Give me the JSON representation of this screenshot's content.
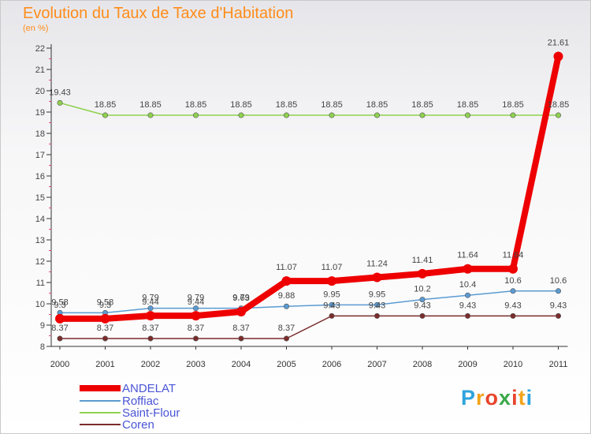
{
  "colors": {
    "title": "#ff8c1a",
    "axis": "#333333",
    "grid_dots": "#e0457b",
    "label": "#444444",
    "legend_text": "#4a55d6"
  },
  "logo": {
    "text": "Proxiti",
    "letters": [
      "P",
      "r",
      "o",
      "x",
      "i",
      "t",
      "i"
    ],
    "colors": [
      "#2fa3de",
      "#f2a31a",
      "#e8452c",
      "#3aa84a",
      "#e8452c",
      "#f2a31a",
      "#2fa3de"
    ]
  },
  "chart_data": {
    "type": "line",
    "title": "Evolution du Taux de Taxe d'Habitation",
    "subtitle": "(en %)",
    "xlabel": "",
    "ylabel": "(en %)",
    "ylim": [
      8,
      22
    ],
    "yticks": [
      "8",
      "9",
      "10",
      "11",
      "12",
      "13",
      "14",
      "15",
      "16",
      "17",
      "18",
      "19",
      "20",
      "21",
      "22"
    ],
    "x": [
      "2000",
      "2001",
      "2002",
      "2003",
      "2004",
      "2005",
      "2006",
      "2007",
      "2008",
      "2009",
      "2010",
      "2011"
    ],
    "legend_position": "bottom-left",
    "series": [
      {
        "name": "ANDELAT",
        "color": "#ee0000",
        "values": [
          9.3,
          9.3,
          9.44,
          9.44,
          9.63,
          11.07,
          11.07,
          11.24,
          11.41,
          11.64,
          11.64,
          21.61
        ],
        "labels": [
          "9.3",
          "9.3",
          "9.44",
          "9.44",
          "9.63",
          "11.07",
          "11.07",
          "11.24",
          "11.41",
          "11.64",
          "11.64",
          "21.61"
        ]
      },
      {
        "name": "Roffiac",
        "color": "#5b9bd1",
        "values": [
          9.58,
          9.58,
          9.79,
          9.79,
          9.79,
          9.88,
          9.95,
          9.95,
          10.2,
          10.4,
          10.6,
          10.6
        ],
        "labels": [
          "9.58",
          "9.58",
          "9.79",
          "9.79",
          "9.79",
          "9.88",
          "9.95",
          "9.95",
          "10.2",
          "10.4",
          "10.6",
          "10.6"
        ]
      },
      {
        "name": "Saint-Flour",
        "color": "#8fd14f",
        "values": [
          19.43,
          18.85,
          18.85,
          18.85,
          18.85,
          18.85,
          18.85,
          18.85,
          18.85,
          18.85,
          18.85,
          18.85
        ],
        "labels": [
          "19.43",
          "18.85",
          "18.85",
          "18.85",
          "18.85",
          "18.85",
          "18.85",
          "18.85",
          "18.85",
          "18.85",
          "18.85",
          "18.85"
        ]
      },
      {
        "name": "Coren",
        "color": "#7b2c2c",
        "values": [
          8.37,
          8.37,
          8.37,
          8.37,
          8.37,
          8.37,
          9.43,
          9.43,
          9.43,
          9.43,
          9.43,
          9.43
        ],
        "labels": [
          "8.37",
          "8.37",
          "8.37",
          "8.37",
          "8.37",
          "8.37",
          "9.43",
          "9.43",
          "9.43",
          "9.43",
          "9.43",
          "9.43"
        ]
      }
    ]
  }
}
